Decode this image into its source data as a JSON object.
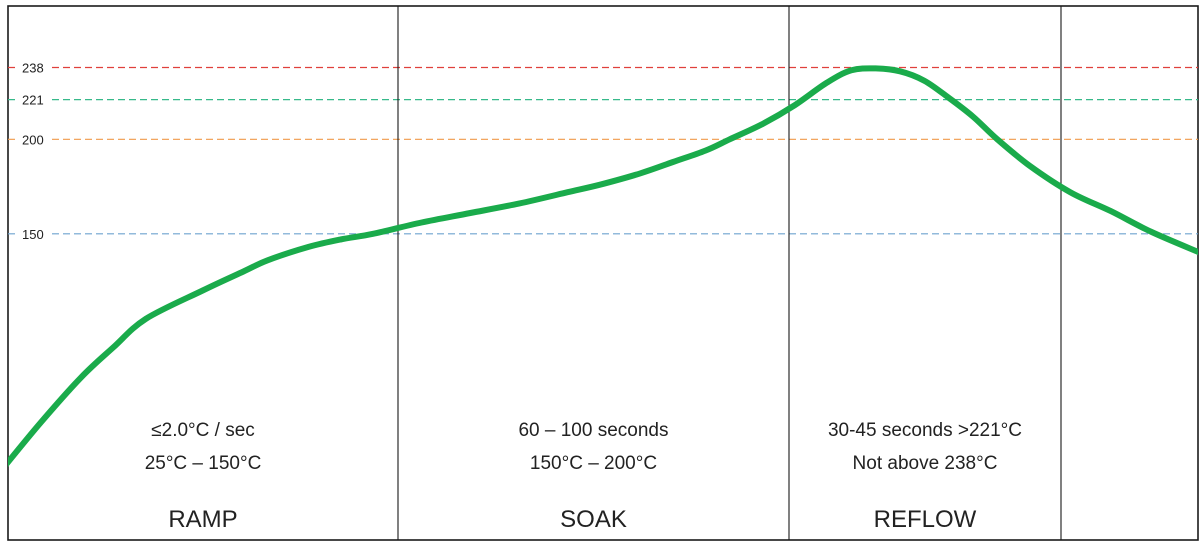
{
  "chart_data": {
    "type": "line",
    "title": "",
    "xlabel": "",
    "ylabel": "",
    "ylim": [
      0,
      260
    ],
    "grid": false,
    "y_ticks": [
      "238",
      "221",
      "200",
      "150"
    ],
    "threshold_lines": [
      {
        "value": 238,
        "label": "238",
        "color": "#e0403c"
      },
      {
        "value": 221,
        "label": "221",
        "color": "#37b98a"
      },
      {
        "value": 200,
        "label": "200",
        "color": "#f09a4a"
      },
      {
        "value": 150,
        "label": "150",
        "color": "#6fa3cf"
      }
    ],
    "phases": [
      {
        "name": "RAMP",
        "line1": "≤2.0°C / sec",
        "line2": "25°C – 150°C"
      },
      {
        "name": "SOAK",
        "line1": "60 – 100 seconds",
        "line2": "150°C – 200°C"
      },
      {
        "name": "REFLOW",
        "line1": "30-45 seconds >221°C",
        "line2": "Not above 238°C"
      },
      {
        "name": "",
        "line1": "",
        "line2": ""
      }
    ],
    "series": [
      {
        "color": "#1aab4b",
        "points": [
          [
            0,
            24
          ],
          [
            0.05,
            50
          ],
          [
            0.1,
            74
          ],
          [
            0.14,
            90
          ],
          [
            0.18,
            105
          ],
          [
            0.25,
            120
          ],
          [
            0.3,
            130
          ],
          [
            0.33,
            136
          ],
          [
            0.38,
            143
          ],
          [
            0.42,
            147
          ],
          [
            0.46,
            150
          ],
          [
            0.52,
            156
          ],
          [
            0.58,
            161
          ],
          [
            0.64,
            166
          ],
          [
            0.7,
            172
          ],
          [
            0.74,
            176
          ],
          [
            0.79,
            182
          ],
          [
            0.83,
            188
          ],
          [
            0.87,
            194
          ],
          [
            0.9,
            200
          ],
          [
            0.94,
            208
          ],
          [
            0.98,
            218
          ],
          [
            1.02,
            230
          ],
          [
            1.05,
            236.5
          ],
          [
            1.08,
            237.5
          ],
          [
            1.11,
            236
          ],
          [
            1.14,
            231
          ],
          [
            1.17,
            222
          ],
          [
            1.2,
            212
          ],
          [
            1.23,
            200
          ],
          [
            1.27,
            186
          ],
          [
            1.32,
            172
          ],
          [
            1.37,
            162
          ],
          [
            1.42,
            151
          ],
          [
            1.48,
            140
          ]
        ]
      }
    ]
  }
}
